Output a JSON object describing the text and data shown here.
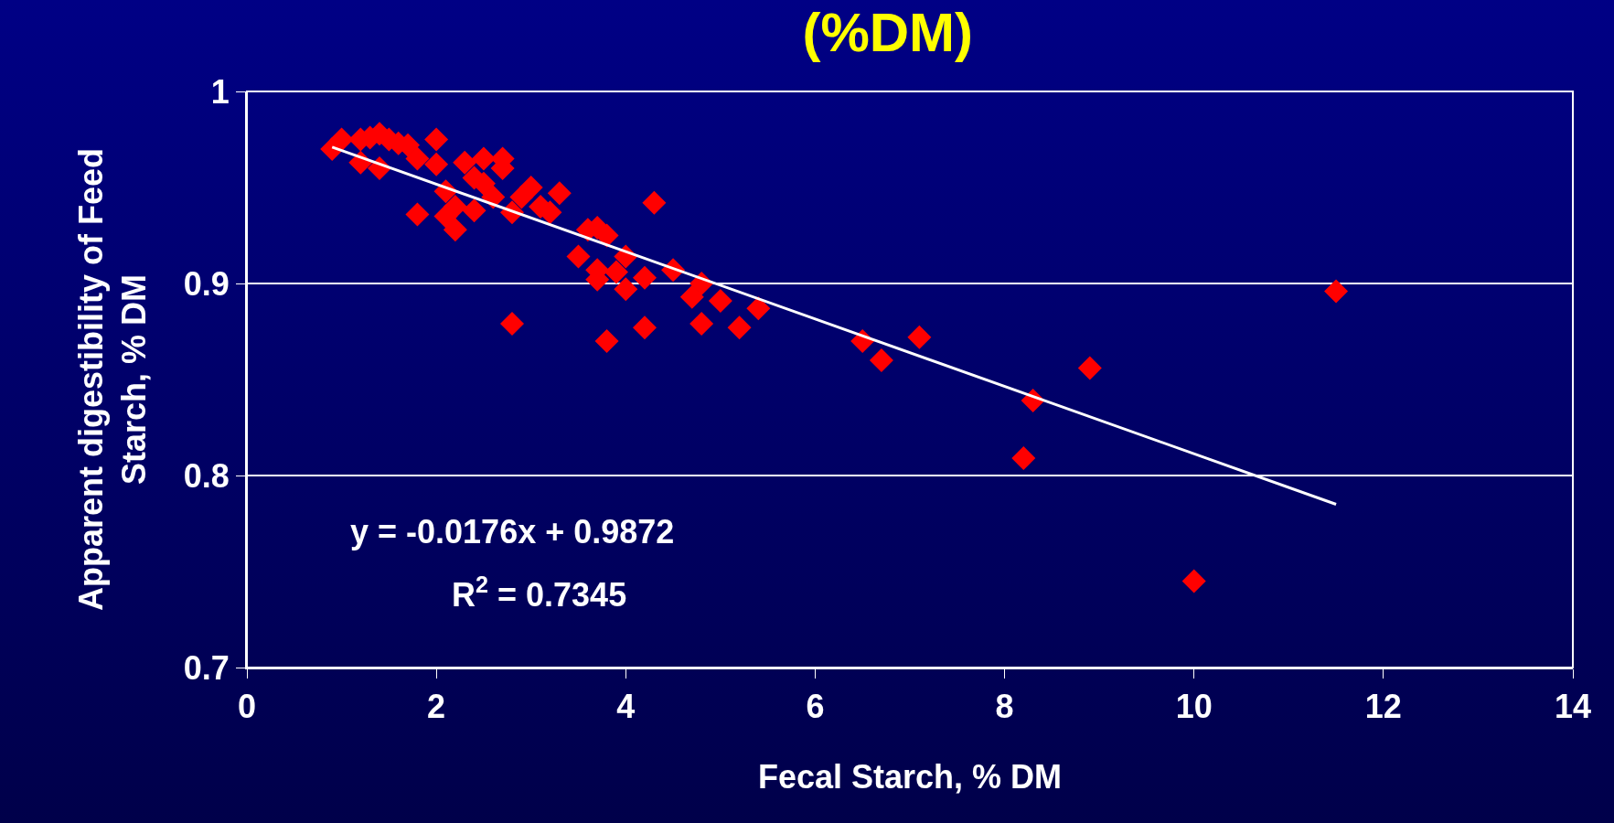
{
  "chart_data": {
    "type": "scatter",
    "title": "(%DM)",
    "xlabel": "Fecal Starch, % DM",
    "ylabel": "Apparent digestibility of Feed\nStarch, % DM",
    "annotations": [
      "y = -0.0176x + 0.9872",
      "R$^{2}$ = 0.7345"
    ],
    "xlim": [
      0,
      14
    ],
    "xticks": [
      0,
      2,
      4,
      6,
      8,
      10,
      12,
      14
    ],
    "ylim": [
      0.7,
      1
    ],
    "yticks": [
      0.7,
      0.8,
      0.9,
      1
    ],
    "grid": "y",
    "marker": "diamond",
    "series": [
      {
        "color": "#ff0000",
        "x": [
          0.9,
          1.0,
          1.2,
          1.2,
          1.3,
          1.4,
          1.4,
          1.5,
          1.6,
          1.7,
          1.8,
          1.8,
          2.0,
          2.0,
          2.1,
          2.1,
          2.2,
          2.2,
          2.3,
          2.4,
          2.4,
          2.5,
          2.5,
          2.6,
          2.7,
          2.7,
          2.8,
          2.8,
          2.9,
          3.0,
          3.1,
          3.2,
          3.3,
          3.5,
          3.6,
          3.7,
          3.7,
          3.7,
          3.8,
          3.8,
          3.9,
          4.0,
          4.0,
          4.2,
          4.2,
          4.3,
          4.5,
          4.7,
          4.8,
          4.8,
          5.0,
          5.2,
          5.4,
          6.5,
          6.7,
          7.1,
          8.2,
          8.3,
          8.9,
          10.0,
          11.5
        ],
        "values": [
          0.97,
          0.975,
          0.963,
          0.975,
          0.976,
          0.978,
          0.96,
          0.975,
          0.973,
          0.972,
          0.965,
          0.936,
          0.975,
          0.962,
          0.948,
          0.935,
          0.94,
          0.928,
          0.963,
          0.955,
          0.938,
          0.965,
          0.952,
          0.945,
          0.965,
          0.96,
          0.937,
          0.879,
          0.945,
          0.95,
          0.94,
          0.937,
          0.947,
          0.914,
          0.928,
          0.929,
          0.907,
          0.902,
          0.925,
          0.87,
          0.906,
          0.914,
          0.897,
          0.903,
          0.877,
          0.942,
          0.907,
          0.893,
          0.9,
          0.879,
          0.891,
          0.877,
          0.887,
          0.87,
          0.86,
          0.872,
          0.809,
          0.839,
          0.856,
          0.745,
          0.896
        ]
      },
      {
        "type": "line",
        "color": "#ffffff",
        "x": [
          0.9,
          11.5
        ],
        "values": [
          0.971,
          0.785
        ],
        "marker": "none",
        "line_style": "solid"
      }
    ]
  }
}
